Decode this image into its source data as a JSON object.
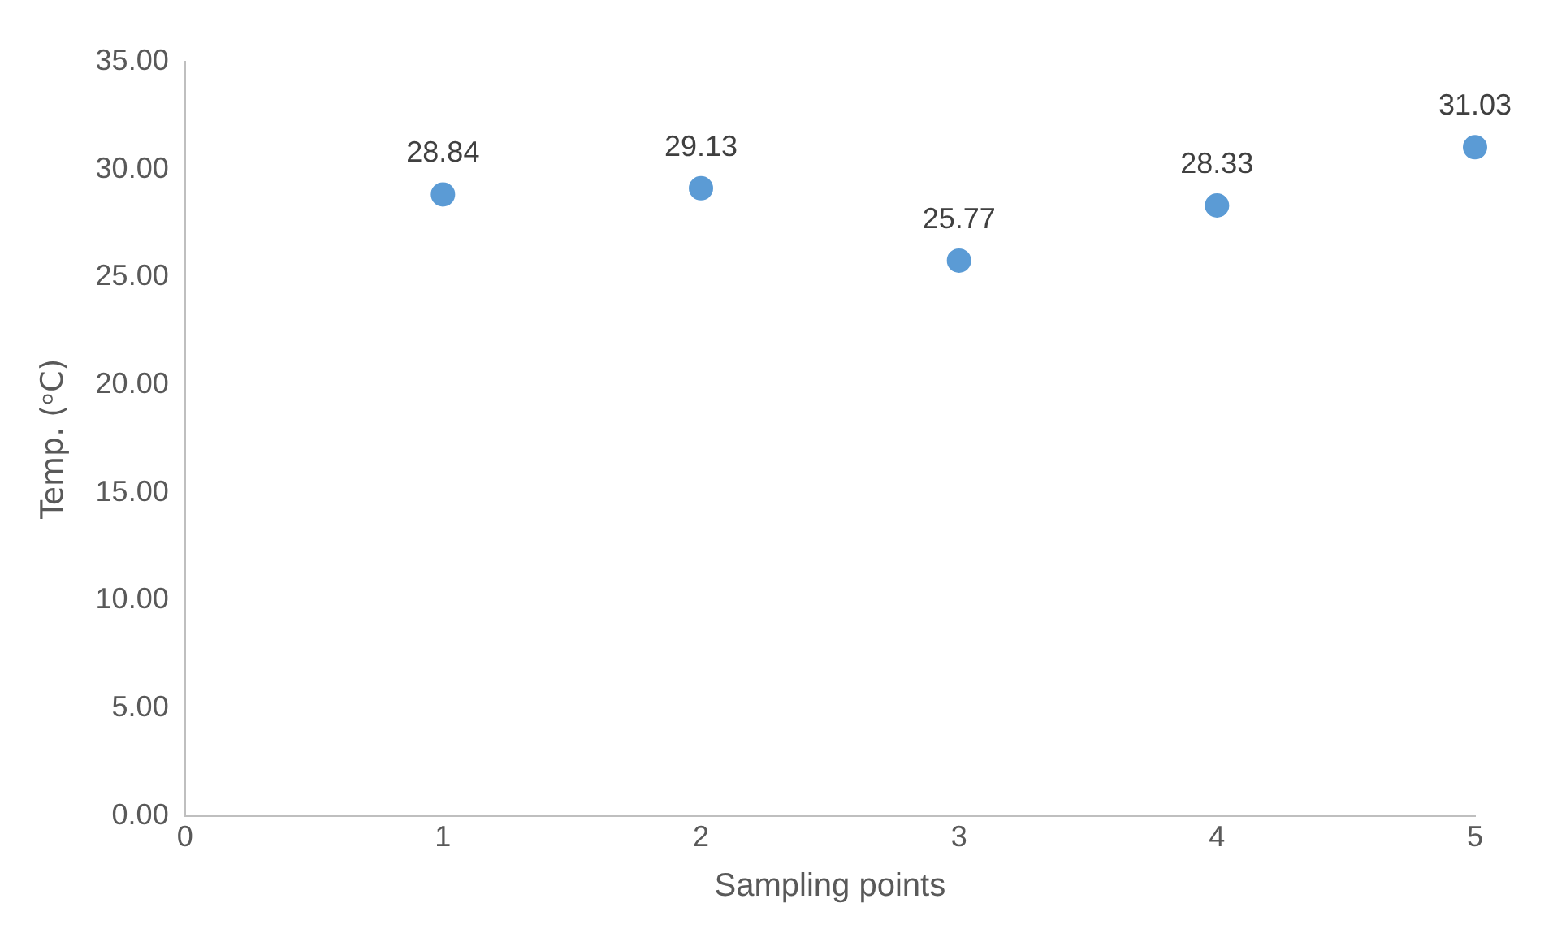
{
  "chart_data": {
    "type": "scatter",
    "xlabel": "Sampling points",
    "ylabel": "Temp. (ᵒC)",
    "x": [
      1,
      2,
      3,
      4,
      5
    ],
    "series": [
      {
        "color": "#5b9bd5",
        "values": [
          28.84,
          29.13,
          25.77,
          28.33,
          31.03
        ]
      }
    ],
    "xlim": [
      0,
      5
    ],
    "xticks": [
      0,
      1,
      2,
      3,
      4,
      5
    ],
    "ylim": [
      0,
      35
    ],
    "yticks": [
      {
        "value": 0,
        "label": "0.00"
      },
      {
        "value": 5,
        "label": "5.00"
      },
      {
        "value": 10,
        "label": "10.00"
      },
      {
        "value": 15,
        "label": "15.00"
      },
      {
        "value": 20,
        "label": "20.00"
      },
      {
        "value": 25,
        "label": "25.00"
      },
      {
        "value": 30,
        "label": "30.00"
      },
      {
        "value": 35,
        "label": "35.00"
      }
    ],
    "grid": false,
    "legend": false,
    "marker": "circle",
    "data_labels": true
  }
}
